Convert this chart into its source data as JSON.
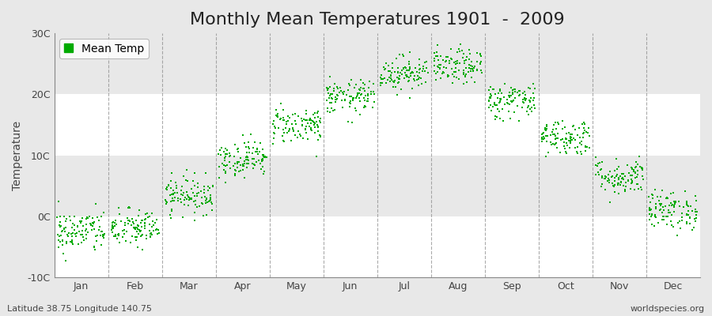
{
  "title": "Monthly Mean Temperatures 1901  -  2009",
  "ylabel": "Temperature",
  "xlabel_months": [
    "Jan",
    "Feb",
    "Mar",
    "Apr",
    "May",
    "Jun",
    "Jul",
    "Aug",
    "Sep",
    "Oct",
    "Nov",
    "Dec"
  ],
  "monthly_means": [
    -2.5,
    -2.0,
    3.5,
    9.5,
    15.0,
    19.5,
    23.5,
    24.5,
    19.0,
    13.0,
    6.5,
    1.0
  ],
  "monthly_stds": [
    1.8,
    1.6,
    1.5,
    1.5,
    1.5,
    1.4,
    1.4,
    1.4,
    1.5,
    1.5,
    1.5,
    1.6
  ],
  "n_years": 109,
  "dot_color": "#00AA00",
  "dot_size": 4,
  "background_color": "#E8E8E8",
  "plot_bg_color": "#FFFFFF",
  "grid_color": "#888888",
  "ylim": [
    -10,
    30
  ],
  "yticks": [
    -10,
    0,
    10,
    20,
    30
  ],
  "ytick_labels": [
    "-10C",
    "0C",
    "10C",
    "20C",
    "30C"
  ],
  "legend_label": "Mean Temp",
  "bottom_left_text": "Latitude 38.75 Longitude 140.75",
  "bottom_right_text": "worldspecies.org",
  "title_fontsize": 16,
  "axis_fontsize": 10,
  "tick_fontsize": 9,
  "annotation_fontsize": 8,
  "band_colors": [
    "#FFFFFF",
    "#E8E8E8"
  ]
}
